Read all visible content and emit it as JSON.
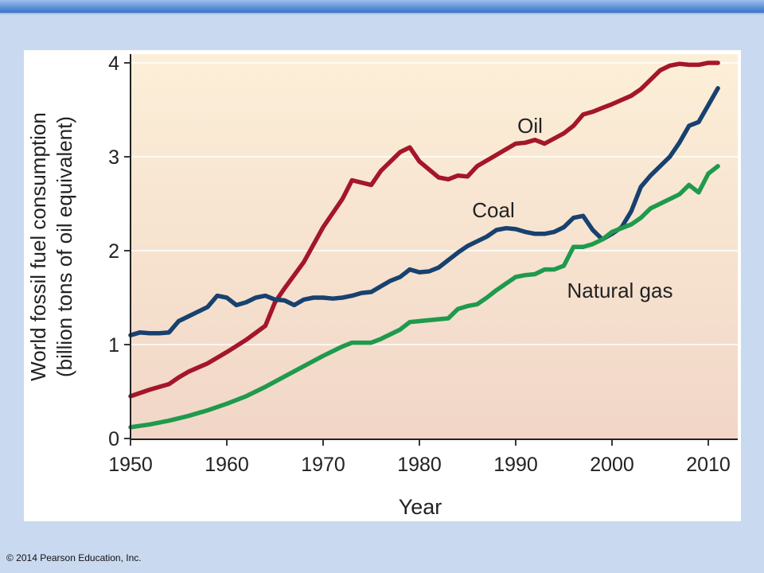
{
  "footer": {
    "copyright": "© 2014 Pearson Education, Inc."
  },
  "colors": {
    "slide_background": "#c9daf0",
    "plot_gradient_top": "#fcefd8",
    "plot_gradient_bottom": "#f1d6c7",
    "oil": "#a4162a",
    "coal": "#17416f",
    "natural_gas": "#1f9a4d"
  },
  "chart_data": {
    "type": "line",
    "title": "",
    "xlabel": "Year",
    "ylabel_line1": "World fossil fuel consumption",
    "ylabel_line2": "(billion tons of oil equivalent)",
    "xlim": [
      1950,
      2012
    ],
    "ylim": [
      0,
      4.1
    ],
    "xticks": [
      1950,
      1960,
      1970,
      1980,
      1990,
      2000,
      2010
    ],
    "yticks": [
      0,
      1,
      2,
      3,
      4
    ],
    "grid": "horizontal",
    "series": [
      {
        "name": "Oil",
        "color_key": "oil",
        "x": [
          1950,
          1952,
          1954,
          1955,
          1956,
          1958,
          1960,
          1962,
          1964,
          1965,
          1966,
          1968,
          1970,
          1972,
          1973,
          1975,
          1976,
          1978,
          1979,
          1980,
          1982,
          1983,
          1984,
          1985,
          1986,
          1988,
          1990,
          1991,
          1992,
          1993,
          1995,
          1996,
          1997,
          1998,
          1999,
          2000,
          2002,
          2003,
          2004,
          2005,
          2006,
          2007,
          2008,
          2009,
          2010,
          2011
        ],
        "y": [
          0.45,
          0.52,
          0.58,
          0.65,
          0.71,
          0.8,
          0.92,
          1.05,
          1.2,
          1.45,
          1.6,
          1.88,
          2.25,
          2.55,
          2.75,
          2.7,
          2.85,
          3.05,
          3.1,
          2.95,
          2.78,
          2.76,
          2.8,
          2.79,
          2.9,
          3.02,
          3.14,
          3.15,
          3.18,
          3.14,
          3.25,
          3.33,
          3.45,
          3.48,
          3.52,
          3.56,
          3.65,
          3.72,
          3.82,
          3.92,
          3.97,
          3.99,
          3.98,
          3.98,
          4.0,
          4.0
        ]
      },
      {
        "name": "Coal",
        "color_key": "coal",
        "x": [
          1950,
          1951,
          1952,
          1953,
          1954,
          1955,
          1956,
          1957,
          1958,
          1959,
          1960,
          1961,
          1962,
          1963,
          1964,
          1965,
          1966,
          1967,
          1968,
          1969,
          1970,
          1971,
          1972,
          1973,
          1974,
          1975,
          1976,
          1977,
          1978,
          1979,
          1980,
          1981,
          1982,
          1983,
          1984,
          1985,
          1986,
          1987,
          1988,
          1989,
          1990,
          1991,
          1992,
          1993,
          1994,
          1995,
          1996,
          1997,
          1998,
          1999,
          2000,
          2001,
          2002,
          2003,
          2004,
          2005,
          2006,
          2007,
          2008,
          2009,
          2010,
          2011
        ],
        "y": [
          1.1,
          1.13,
          1.12,
          1.12,
          1.13,
          1.25,
          1.3,
          1.35,
          1.4,
          1.52,
          1.5,
          1.42,
          1.45,
          1.5,
          1.52,
          1.48,
          1.47,
          1.42,
          1.48,
          1.5,
          1.5,
          1.49,
          1.5,
          1.52,
          1.55,
          1.56,
          1.62,
          1.68,
          1.72,
          1.8,
          1.77,
          1.78,
          1.82,
          1.9,
          1.98,
          2.05,
          2.1,
          2.15,
          2.22,
          2.24,
          2.23,
          2.2,
          2.18,
          2.18,
          2.2,
          2.25,
          2.35,
          2.37,
          2.22,
          2.12,
          2.18,
          2.25,
          2.42,
          2.68,
          2.8,
          2.9,
          3.0,
          3.15,
          3.33,
          3.37,
          3.55,
          3.73
        ]
      },
      {
        "name": "Natural gas",
        "color_key": "natural_gas",
        "x": [
          1950,
          1952,
          1954,
          1956,
          1958,
          1960,
          1962,
          1964,
          1966,
          1968,
          1970,
          1972,
          1973,
          1974,
          1975,
          1976,
          1978,
          1979,
          1980,
          1982,
          1983,
          1984,
          1985,
          1986,
          1987,
          1988,
          1990,
          1991,
          1992,
          1993,
          1994,
          1995,
          1996,
          1997,
          1998,
          1999,
          2000,
          2002,
          2003,
          2004,
          2005,
          2006,
          2007,
          2008,
          2009,
          2010,
          2011
        ],
        "y": [
          0.12,
          0.15,
          0.19,
          0.24,
          0.3,
          0.37,
          0.45,
          0.55,
          0.66,
          0.77,
          0.88,
          0.98,
          1.02,
          1.02,
          1.02,
          1.06,
          1.16,
          1.24,
          1.25,
          1.27,
          1.28,
          1.38,
          1.41,
          1.43,
          1.5,
          1.58,
          1.72,
          1.74,
          1.75,
          1.8,
          1.8,
          1.84,
          2.04,
          2.04,
          2.07,
          2.12,
          2.2,
          2.28,
          2.35,
          2.45,
          2.5,
          2.55,
          2.6,
          2.7,
          2.62,
          2.82,
          2.9
        ]
      }
    ],
    "annotations": [
      {
        "text": "Oil",
        "series": "Oil"
      },
      {
        "text": "Coal",
        "series": "Coal"
      },
      {
        "text": "Natural gas",
        "series": "Natural gas"
      }
    ]
  }
}
